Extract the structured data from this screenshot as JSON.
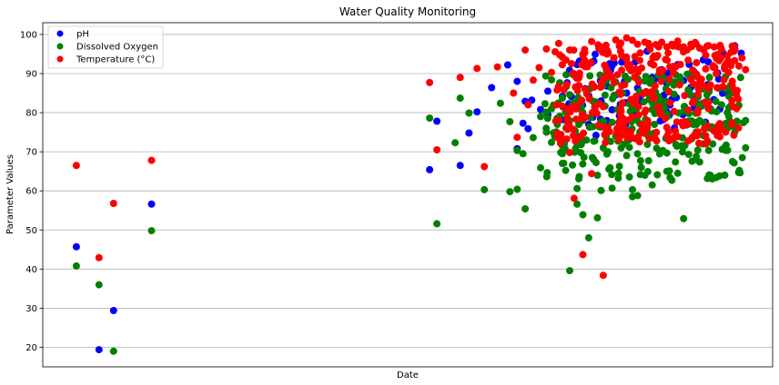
{
  "chart_data": {
    "type": "scatter",
    "title": "Water Quality Monitoring",
    "xlabel": "Date",
    "ylabel": "Parameter Values",
    "ylim": [
      15,
      103
    ],
    "xlim": [
      0,
      1000
    ],
    "yticks": [
      20,
      30,
      40,
      50,
      60,
      70,
      80,
      90,
      100
    ],
    "grid": "horizontal",
    "legend_position": "top-left",
    "series": [
      {
        "name": "pH",
        "color": "#0000ff",
        "points": [
          [
            46,
            45.7
          ],
          [
            77,
            19.4
          ],
          [
            97,
            29.4
          ],
          [
            149,
            56.6
          ],
          [
            530,
            65.4
          ],
          [
            540,
            77.8
          ],
          [
            572,
            66.5
          ],
          [
            584,
            74.8
          ],
          [
            595,
            80.2
          ],
          [
            615,
            86.4
          ],
          [
            637,
            92.2
          ],
          [
            650,
            88.0
          ],
          [
            650,
            70.8
          ],
          [
            658,
            77.3
          ],
          [
            661,
            82.9
          ],
          [
            665,
            75.9
          ],
          [
            670,
            83.2
          ],
          [
            682,
            80.8
          ],
          [
            692,
            85.5
          ],
          [
            692,
            79.4
          ],
          [
            712,
            84.2
          ],
          [
            712,
            78.2
          ],
          [
            721,
            82.3
          ],
          [
            732,
            92.3
          ],
          [
            732,
            81.1
          ],
          [
            738,
            78.5
          ],
          [
            748,
            84.3
          ],
          [
            748,
            77.0
          ],
          [
            755,
            93.2
          ],
          [
            758,
            82.0
          ],
          [
            758,
            74.2
          ],
          [
            765,
            83.0
          ],
          [
            773,
            86.8
          ],
          [
            773,
            78.0
          ],
          [
            778,
            90.8
          ],
          [
            783,
            92.7
          ],
          [
            785,
            84.5
          ],
          [
            790,
            79.2
          ],
          [
            797,
            88.0
          ],
          [
            800,
            85.0
          ],
          [
            812,
            93.0
          ],
          [
            815,
            86.3
          ],
          [
            820,
            82.8
          ],
          [
            828,
            95.7
          ],
          [
            832,
            84.3
          ],
          [
            835,
            89.0
          ],
          [
            843,
            81.2
          ],
          [
            848,
            91.0
          ],
          [
            855,
            87.5
          ],
          [
            862,
            83.4
          ],
          [
            870,
            92.3
          ],
          [
            878,
            88.2
          ],
          [
            885,
            85.5
          ],
          [
            892,
            90.5
          ],
          [
            905,
            93.5
          ],
          [
            913,
            86.0
          ],
          [
            926,
            88.6
          ],
          [
            932,
            95.3
          ],
          [
            948,
            97.1
          ],
          [
            957,
            95.2
          ]
        ]
      },
      {
        "name": "Dissolved Oxygen",
        "color": "#008000",
        "points": [
          [
            46,
            40.8
          ],
          [
            77,
            36.0
          ],
          [
            97,
            19.0
          ],
          [
            149,
            49.8
          ],
          [
            530,
            78.6
          ],
          [
            540,
            51.6
          ],
          [
            565,
            72.3
          ],
          [
            572,
            83.7
          ],
          [
            584,
            79.9
          ],
          [
            605,
            60.3
          ],
          [
            627,
            82.4
          ],
          [
            640,
            77.7
          ],
          [
            640,
            59.8
          ],
          [
            650,
            70.3
          ],
          [
            650,
            60.4
          ],
          [
            658,
            69.5
          ],
          [
            661,
            55.4
          ],
          [
            672,
            73.6
          ],
          [
            682,
            79.0
          ],
          [
            682,
            65.9
          ],
          [
            697,
            81.0
          ],
          [
            697,
            72.4
          ],
          [
            712,
            71.5
          ],
          [
            712,
            69.5
          ],
          [
            712,
            67.0
          ],
          [
            722,
            84.6
          ],
          [
            722,
            76.0
          ],
          [
            722,
            39.6
          ],
          [
            732,
            60.6
          ],
          [
            732,
            56.6
          ],
          [
            740,
            53.9
          ],
          [
            748,
            48.0
          ],
          [
            755,
            72.7
          ],
          [
            755,
            68.0
          ],
          [
            760,
            64.0
          ],
          [
            760,
            53.1
          ],
          [
            765,
            60.1
          ],
          [
            773,
            75.5
          ],
          [
            773,
            70.0
          ],
          [
            780,
            60.7
          ],
          [
            790,
            66.3
          ],
          [
            797,
            72.0
          ],
          [
            800,
            69.0
          ],
          [
            808,
            60.3
          ],
          [
            808,
            58.5
          ],
          [
            815,
            58.8
          ],
          [
            820,
            66.0
          ],
          [
            825,
            64.0
          ],
          [
            830,
            67.7
          ],
          [
            835,
            61.5
          ],
          [
            842,
            64.1
          ],
          [
            848,
            70.0
          ],
          [
            855,
            65.0
          ],
          [
            862,
            62.7
          ],
          [
            870,
            64.5
          ],
          [
            878,
            52.9
          ],
          [
            885,
            69.3
          ],
          [
            892,
            74.0
          ],
          [
            900,
            78.0
          ],
          [
            908,
            76.0
          ],
          [
            915,
            81.0
          ],
          [
            922,
            75.5
          ],
          [
            930,
            82.0
          ],
          [
            938,
            80.0
          ],
          [
            948,
            75.0
          ],
          [
            953,
            81.7
          ],
          [
            963,
            71.0
          ],
          [
            963,
            78.0
          ],
          [
            690,
            75.0
          ],
          [
            705,
            77.0
          ],
          [
            745,
            73.0
          ],
          [
            768,
            71.0
          ],
          [
            785,
            74.0
          ],
          [
            803,
            73.0
          ],
          [
            818,
            75.0
          ],
          [
            838,
            77.0
          ],
          [
            860,
            73.0
          ],
          [
            875,
            71.5
          ],
          [
            895,
            68.0
          ],
          [
            918,
            72.0
          ],
          [
            940,
            79.0
          ]
        ]
      },
      {
        "name": "Temperature (°C)",
        "color": "#ff0000",
        "points": [
          [
            46,
            66.5
          ],
          [
            77,
            42.9
          ],
          [
            97,
            56.8
          ],
          [
            149,
            67.8
          ],
          [
            530,
            87.7
          ],
          [
            540,
            70.5
          ],
          [
            572,
            89.0
          ],
          [
            595,
            91.3
          ],
          [
            605,
            66.2
          ],
          [
            623,
            91.7
          ],
          [
            645,
            85.0
          ],
          [
            650,
            73.7
          ],
          [
            661,
            96.0
          ],
          [
            665,
            82.0
          ],
          [
            672,
            88.3
          ],
          [
            680,
            91.5
          ],
          [
            690,
            96.3
          ],
          [
            697,
            90.3
          ],
          [
            712,
            94.2
          ],
          [
            718,
            87.2
          ],
          [
            722,
            96.0
          ],
          [
            722,
            69.8
          ],
          [
            728,
            58.1
          ],
          [
            740,
            95.0
          ],
          [
            740,
            43.7
          ],
          [
            752,
            98.2
          ],
          [
            752,
            64.4
          ],
          [
            762,
            96.4
          ],
          [
            768,
            38.4
          ],
          [
            773,
            95.0
          ],
          [
            785,
            98.6
          ],
          [
            792,
            97.8
          ],
          [
            800,
            99.1
          ],
          [
            808,
            98.5
          ],
          [
            815,
            97.5
          ],
          [
            825,
            98.0
          ],
          [
            832,
            96.2
          ],
          [
            840,
            97.4
          ],
          [
            848,
            98.0
          ],
          [
            855,
            96.8
          ],
          [
            862,
            97.5
          ],
          [
            870,
            98.3
          ],
          [
            878,
            96.8
          ],
          [
            888,
            97.5
          ],
          [
            900,
            96.5
          ],
          [
            910,
            97.0
          ],
          [
            920,
            96.8
          ],
          [
            930,
            96.0
          ],
          [
            938,
            94.6
          ],
          [
            948,
            93.3
          ],
          [
            958,
            94.0
          ],
          [
            963,
            91.0
          ]
        ]
      }
    ],
    "dense_clusters": [
      {
        "series": 1,
        "x_min": 688,
        "x_max": 960,
        "y_min": 63,
        "y_max": 90,
        "count": 260,
        "seed": 7
      },
      {
        "series": 2,
        "x_min": 700,
        "x_max": 955,
        "y_min": 72,
        "y_max": 98,
        "count": 330,
        "seed": 13
      },
      {
        "series": 0,
        "x_min": 700,
        "x_max": 955,
        "y_min": 76,
        "y_max": 95,
        "count": 60,
        "seed": 29
      }
    ]
  }
}
